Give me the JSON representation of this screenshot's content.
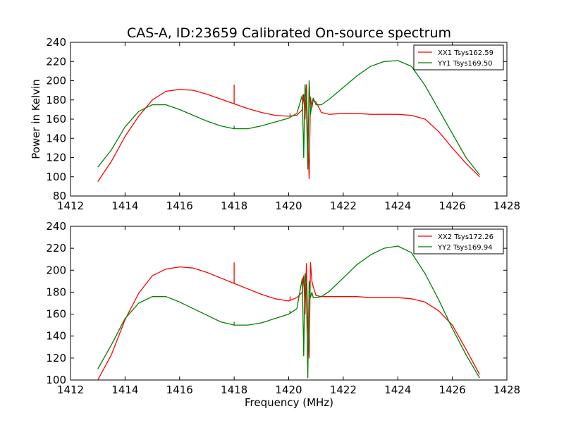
{
  "figure": {
    "title": "CAS-A, ID:23659 Calibrated On-source spectrum",
    "xlabel": "Frequency (MHz)",
    "ylabel": "Power in Kelvin"
  },
  "chart_data": [
    {
      "type": "line",
      "title": "CAS-A, ID:23659 Calibrated On-source spectrum",
      "xlabel": "",
      "ylabel": "Power in Kelvin",
      "xlim": [
        1412,
        1428
      ],
      "ylim": [
        80,
        240
      ],
      "xticks": [
        "1412",
        "1414",
        "1416",
        "1418",
        "1420",
        "1422",
        "1424",
        "1426",
        "1428"
      ],
      "yticks": [
        "80",
        "100",
        "120",
        "140",
        "160",
        "180",
        "200",
        "220",
        "240"
      ],
      "grid": false,
      "legend_position": "top-right",
      "series": [
        {
          "name": "XX1 Tsys162.59",
          "color": "#ff0000",
          "x": [
            1413.0,
            1413.5,
            1414.0,
            1414.5,
            1415.0,
            1415.5,
            1416.0,
            1416.5,
            1417.0,
            1417.5,
            1418.0,
            1418.5,
            1419.0,
            1419.5,
            1420.0,
            1420.3,
            1420.5,
            1420.55,
            1420.6,
            1420.65,
            1420.7,
            1420.75,
            1420.8,
            1420.85,
            1420.9,
            1421.0,
            1421.2,
            1421.5,
            1422.0,
            1422.5,
            1423.0,
            1423.5,
            1424.0,
            1424.5,
            1425.0,
            1425.5,
            1426.0,
            1426.5,
            1427.0
          ],
          "values": [
            95,
            116,
            142,
            163,
            180,
            189,
            191,
            190,
            186,
            181,
            176,
            171,
            167,
            164,
            163,
            164,
            170,
            186,
            160,
            196,
            140,
            98,
            183,
            172,
            180,
            178,
            167,
            165,
            166,
            166,
            165,
            165,
            165,
            164,
            160,
            147,
            130,
            114,
            100
          ],
          "spikes": [
            {
              "x": 1418.0,
              "y": 196
            },
            {
              "x": 1420.05,
              "y": 166
            }
          ]
        },
        {
          "name": "YY1 Tsys169.50",
          "color": "#008000",
          "x": [
            1413.0,
            1413.5,
            1414.0,
            1414.5,
            1415.0,
            1415.5,
            1416.0,
            1416.5,
            1417.0,
            1417.5,
            1418.0,
            1418.5,
            1419.0,
            1419.5,
            1420.0,
            1420.3,
            1420.5,
            1420.55,
            1420.6,
            1420.65,
            1420.7,
            1420.75,
            1420.8,
            1420.85,
            1420.9,
            1421.0,
            1421.2,
            1421.5,
            1422.0,
            1422.5,
            1423.0,
            1423.5,
            1424.0,
            1424.5,
            1425.0,
            1425.5,
            1426.0,
            1426.5,
            1427.0
          ],
          "values": [
            110,
            128,
            152,
            168,
            175,
            175,
            170,
            164,
            158,
            153,
            150,
            150,
            153,
            157,
            161,
            166,
            185,
            120,
            196,
            175,
            108,
            200,
            165,
            175,
            182,
            175,
            175,
            181,
            193,
            205,
            215,
            220,
            221,
            215,
            195,
            170,
            145,
            120,
            102
          ],
          "spikes": [
            {
              "x": 1418.0,
              "y": 153
            }
          ]
        }
      ]
    },
    {
      "type": "line",
      "title": "",
      "xlabel": "Frequency (MHz)",
      "ylabel": "",
      "xlim": [
        1412,
        1428
      ],
      "ylim": [
        100,
        240
      ],
      "xticks": [
        "1412",
        "1414",
        "1416",
        "1418",
        "1420",
        "1422",
        "1424",
        "1426",
        "1428"
      ],
      "yticks": [
        "100",
        "120",
        "140",
        "160",
        "180",
        "200",
        "220",
        "240"
      ],
      "grid": false,
      "legend_position": "top-right",
      "series": [
        {
          "name": "XX2 Tsys172.26",
          "color": "#ff0000",
          "x": [
            1413.0,
            1413.5,
            1414.0,
            1414.5,
            1415.0,
            1415.5,
            1416.0,
            1416.5,
            1417.0,
            1417.5,
            1418.0,
            1418.5,
            1419.0,
            1419.5,
            1420.0,
            1420.3,
            1420.5,
            1420.55,
            1420.6,
            1420.65,
            1420.7,
            1420.75,
            1420.8,
            1420.85,
            1420.9,
            1421.0,
            1421.2,
            1421.5,
            1422.0,
            1422.5,
            1423.0,
            1423.5,
            1424.0,
            1424.5,
            1425.0,
            1425.5,
            1426.0,
            1426.5,
            1427.0
          ],
          "values": [
            100,
            123,
            155,
            179,
            195,
            201,
            203,
            202,
            198,
            193,
            188,
            183,
            178,
            174,
            172,
            175,
            180,
            195,
            160,
            206,
            150,
            120,
            207,
            190,
            185,
            177,
            176,
            176,
            176,
            176,
            175,
            175,
            175,
            174,
            171,
            163,
            150,
            128,
            105
          ],
          "spikes": [
            {
              "x": 1418.0,
              "y": 207
            },
            {
              "x": 1420.05,
              "y": 176
            }
          ]
        },
        {
          "name": "YY2 Tsys169.94",
          "color": "#008000",
          "x": [
            1413.0,
            1413.5,
            1414.0,
            1414.5,
            1415.0,
            1415.5,
            1416.0,
            1416.5,
            1417.0,
            1417.5,
            1418.0,
            1418.5,
            1419.0,
            1419.5,
            1420.0,
            1420.3,
            1420.5,
            1420.55,
            1420.6,
            1420.65,
            1420.7,
            1420.75,
            1420.8,
            1420.85,
            1420.9,
            1421.0,
            1421.2,
            1421.5,
            1422.0,
            1422.5,
            1423.0,
            1423.5,
            1424.0,
            1424.5,
            1425.0,
            1425.5,
            1426.0,
            1426.5,
            1427.0
          ],
          "values": [
            110,
            132,
            156,
            170,
            176,
            176,
            171,
            165,
            159,
            153,
            150,
            150,
            152,
            156,
            160,
            165,
            193,
            122,
            197,
            185,
            102,
            190,
            175,
            180,
            175,
            175,
            176,
            181,
            193,
            205,
            214,
            220,
            222,
            216,
            197,
            173,
            147,
            123,
            102
          ],
          "spikes": [
            {
              "x": 1418.0,
              "y": 153
            },
            {
              "x": 1420.05,
              "y": 163
            }
          ]
        }
      ]
    }
  ]
}
